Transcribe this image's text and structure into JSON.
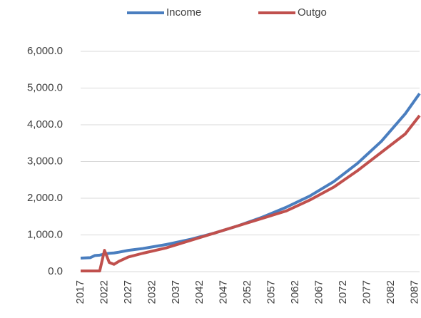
{
  "chart_data": {
    "type": "line",
    "x": [
      2017,
      2019,
      2020,
      2021,
      2022,
      2023,
      2024,
      2025,
      2027,
      2030,
      2035,
      2040,
      2045,
      2050,
      2055,
      2060,
      2065,
      2070,
      2075,
      2080,
      2085,
      2088
    ],
    "series": [
      {
        "name": "Income",
        "color": "#4a7ebf",
        "values": [
          370,
          380,
          440,
          450,
          480,
          500,
          510,
          530,
          580,
          630,
          740,
          880,
          1050,
          1250,
          1480,
          1750,
          2060,
          2450,
          2950,
          3550,
          4300,
          4850
        ]
      },
      {
        "name": "Outgo",
        "color": "#c0504d",
        "values": [
          20,
          20,
          20,
          20,
          580,
          250,
          200,
          280,
          400,
          500,
          650,
          850,
          1050,
          1250,
          1450,
          1650,
          1950,
          2300,
          2750,
          3250,
          3750,
          4250
        ]
      }
    ],
    "xlim": [
      2017,
      2088
    ],
    "xticks": [
      2017,
      2022,
      2027,
      2032,
      2037,
      2042,
      2047,
      2052,
      2057,
      2062,
      2067,
      2072,
      2077,
      2082,
      2087
    ],
    "ylim": [
      0,
      6000
    ],
    "yticks": [
      {
        "value": 0,
        "label": "0.0"
      },
      {
        "value": 1000,
        "label": "1,000.0"
      },
      {
        "value": 2000,
        "label": "2,000.0"
      },
      {
        "value": 3000,
        "label": "3,000.0"
      },
      {
        "value": 4000,
        "label": "4,000.0"
      },
      {
        "value": 5000,
        "label": "5,000.0"
      },
      {
        "value": 6000,
        "label": "6,000.0"
      }
    ],
    "grid": true,
    "legend": "top"
  }
}
